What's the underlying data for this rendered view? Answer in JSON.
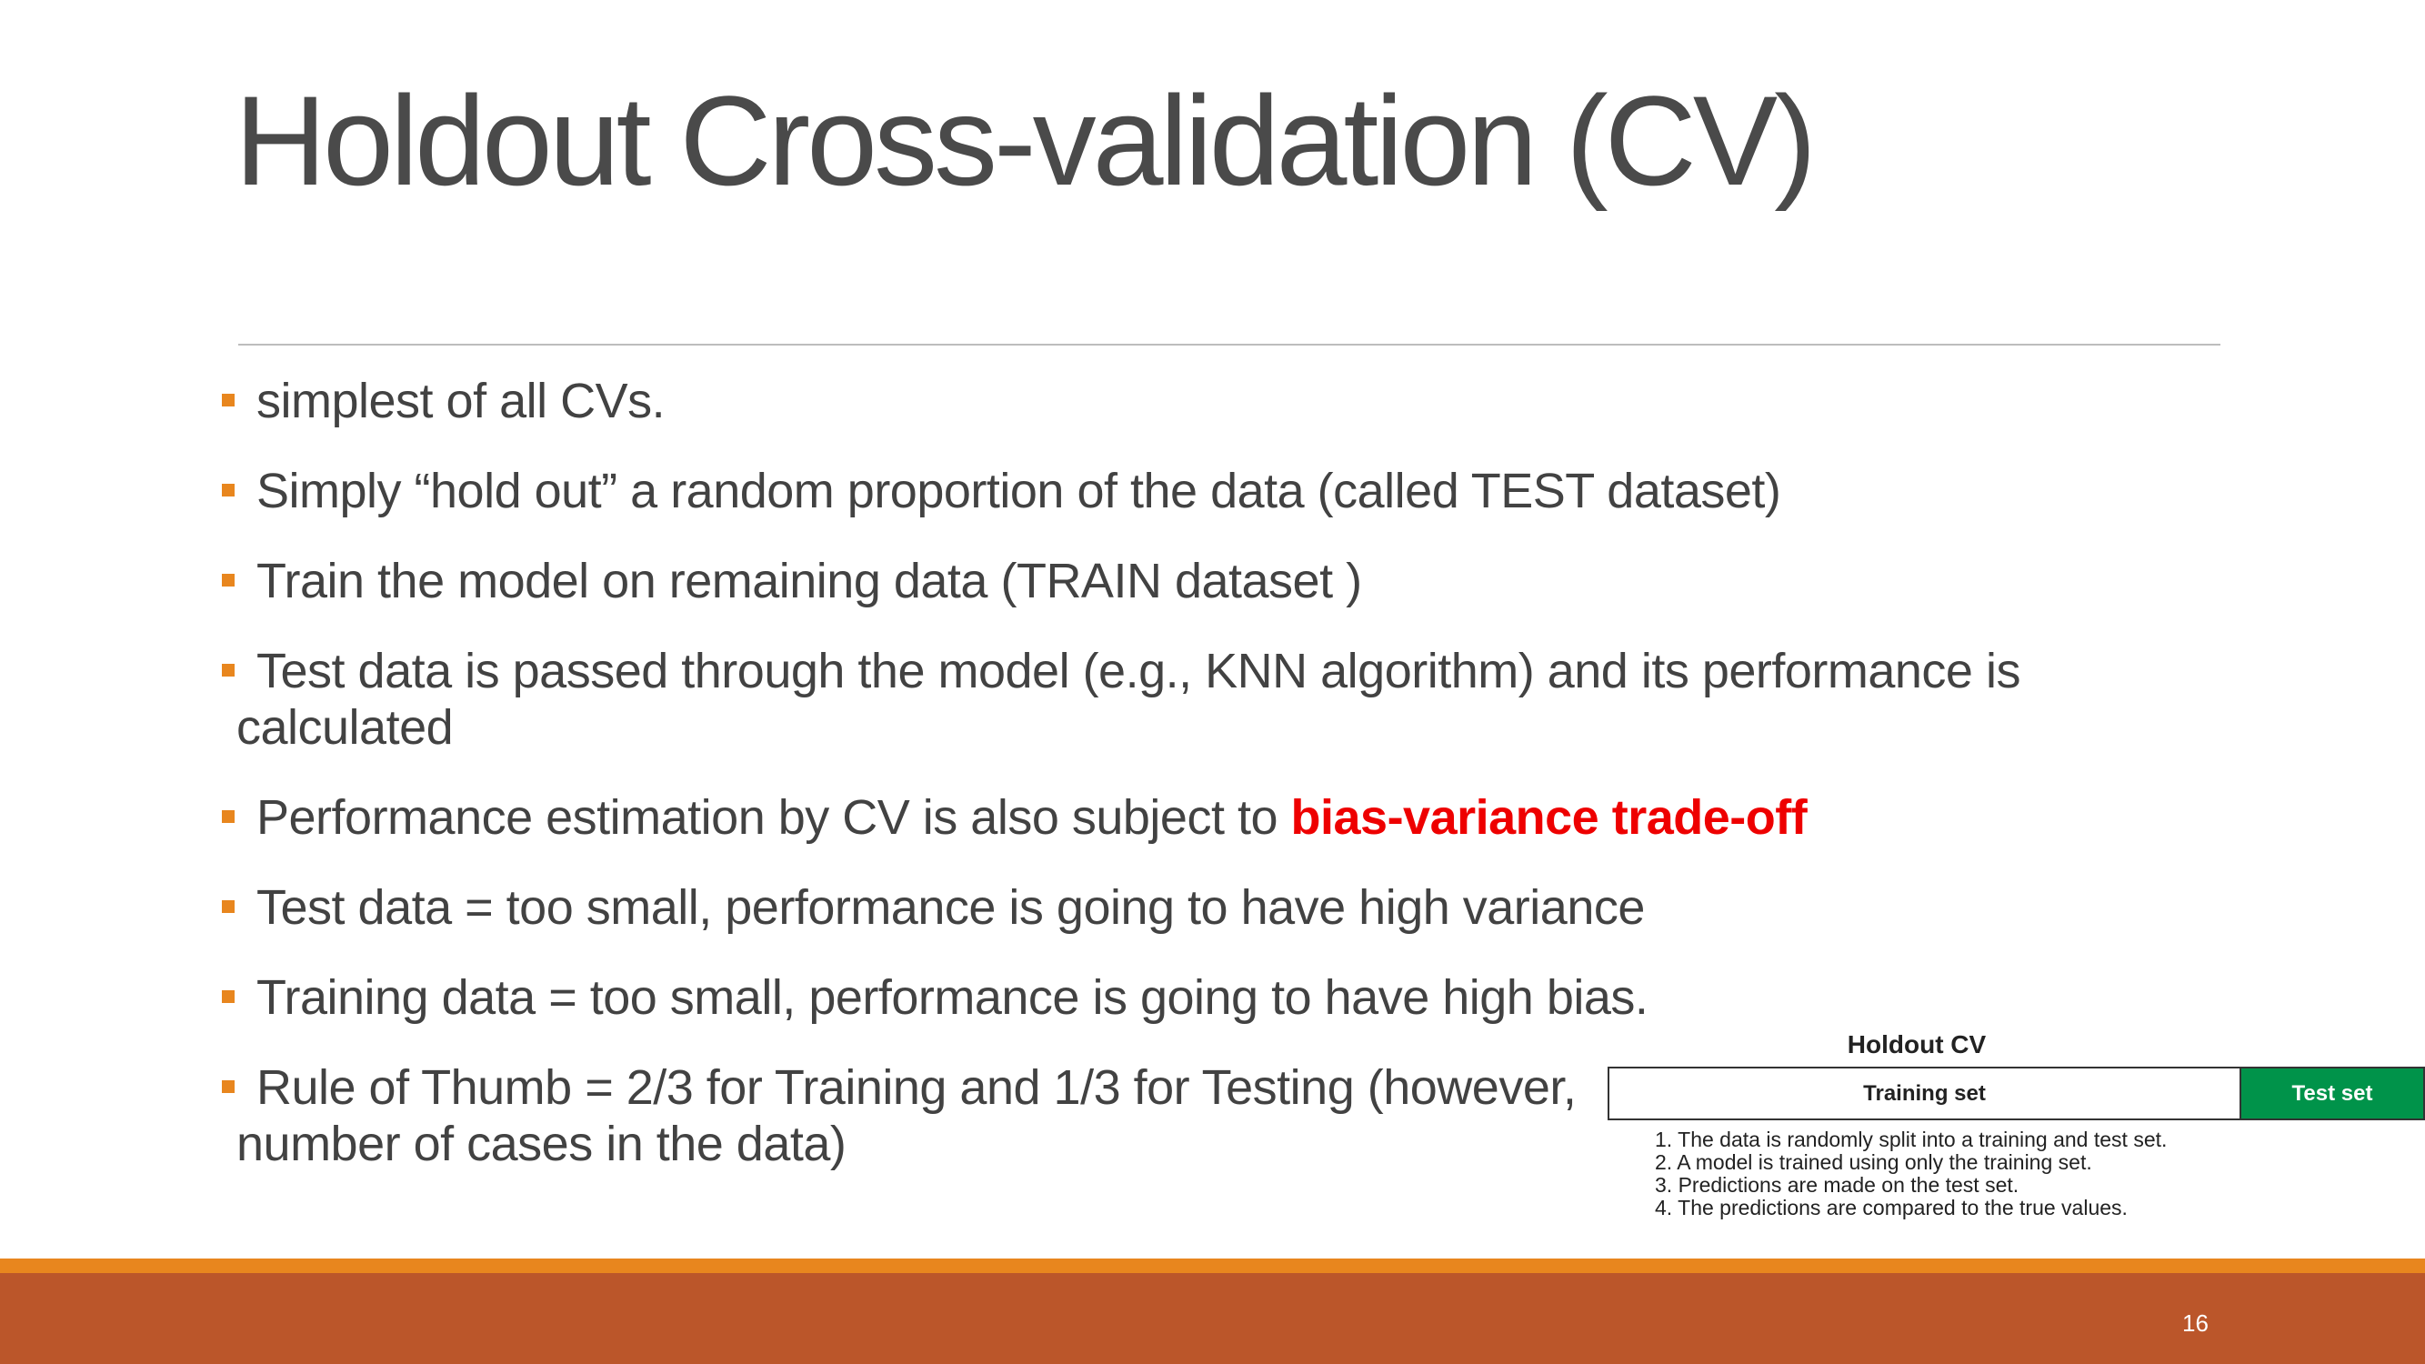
{
  "slide": {
    "title": "Holdout Cross-validation (CV)",
    "page_number": "16"
  },
  "bullets": [
    {
      "text": "simplest of all CVs."
    },
    {
      "text": "Simply “hold out” a random proportion of the data (called TEST dataset)"
    },
    {
      "text": "Train the model on remaining data (TRAIN dataset )"
    },
    {
      "text": "Test data is passed through the model (e.g., KNN algorithm) and its performance is calculated"
    },
    {
      "text": "Performance estimation by CV is also subject to ",
      "highlight": "bias-variance trade-off"
    },
    {
      "text": "Test data = too small, performance is going to have high variance"
    },
    {
      "text": "Training data = too small, performance is going to have high bias."
    },
    {
      "text": "Rule of Thumb = 2/3 for Training and 1/3 for Testing (however,"
    },
    {
      "text": "number of cases in the data)"
    }
  ],
  "inset": {
    "title": "Holdout CV",
    "training_label": "Training set",
    "test_label": "Test set",
    "steps": [
      "1. The data is randomly split into a training and test set.",
      "2. A model is trained using only the training set.",
      "3. Predictions are made on the test set.",
      "4. The predictions are compared to the true values."
    ]
  },
  "colors": {
    "bullet_marker": "#e8861e",
    "highlight": "#ee0000",
    "test_set": "#00934a",
    "footer": "#bb562a",
    "footer_stripe": "#e8861e"
  }
}
